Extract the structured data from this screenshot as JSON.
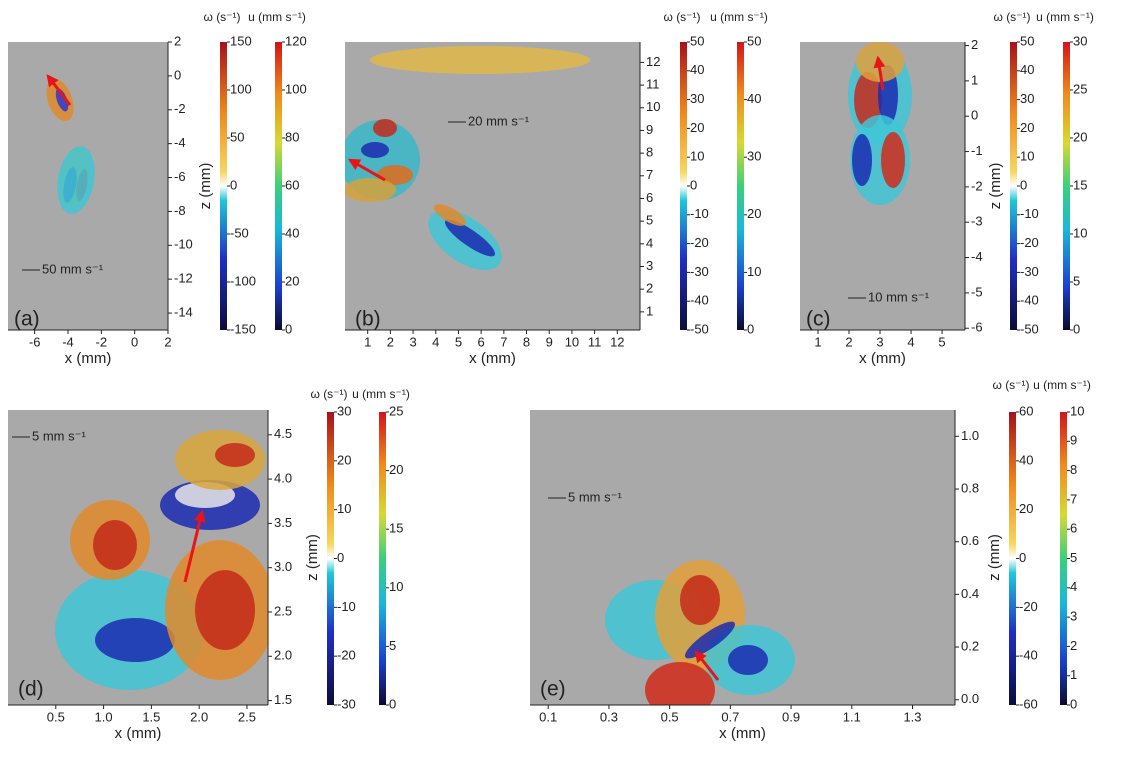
{
  "chart_data": [
    {
      "type": "flow-field",
      "panel_label": "(a)",
      "xlabel": "x (mm)",
      "ylabel": "z (mm)",
      "scale_label": "50 mm s⁻¹",
      "xlim": [
        -7.6,
        2
      ],
      "xticks": [
        -6,
        -4,
        -2,
        0,
        2
      ],
      "ylim": [
        -15,
        2
      ],
      "yticks": [
        2,
        0,
        -2,
        -4,
        -6,
        -8,
        -10,
        -12,
        -14
      ],
      "colorbars": [
        {
          "label": "ω (s⁻¹)",
          "lim": [
            -150,
            150
          ],
          "ticks": [
            150,
            100,
            50,
            0,
            -50,
            -100,
            -150
          ]
        },
        {
          "label": "u (mm s⁻¹)",
          "lim": [
            0,
            120
          ],
          "ticks": [
            120,
            100,
            80,
            60,
            40,
            20,
            0
          ]
        }
      ]
    },
    {
      "type": "flow-field",
      "panel_label": "(b)",
      "xlabel": "x (mm)",
      "scale_label": "20 mm s⁻¹",
      "xlim": [
        0,
        13
      ],
      "xticks": [
        1,
        2,
        3,
        4,
        5,
        6,
        7,
        8,
        9,
        10,
        11,
        12
      ],
      "ylim": [
        0.2,
        12.9
      ],
      "yticks": [
        12,
        11,
        10,
        9,
        8,
        7,
        6,
        5,
        4,
        3,
        2,
        1
      ],
      "colorbars": [
        {
          "label": "ω (s⁻¹)",
          "lim": [
            -50,
            50
          ],
          "ticks": [
            50,
            40,
            30,
            20,
            10,
            0,
            -10,
            -20,
            -30,
            -40,
            -50
          ]
        },
        {
          "label": "u (mm s⁻¹)",
          "lim": [
            0,
            50
          ],
          "ticks": [
            50,
            40,
            30,
            20,
            10,
            0
          ]
        }
      ]
    },
    {
      "type": "flow-field",
      "panel_label": "(c)",
      "xlabel": "x (mm)",
      "ylabel": "z (mm)",
      "scale_label": "10 mm s⁻¹",
      "xlim": [
        0.42,
        5.74
      ],
      "xticks": [
        1,
        2,
        3,
        4,
        5
      ],
      "ylim": [
        -6.05,
        2.1
      ],
      "yticks": [
        2,
        1,
        0,
        -1,
        -2,
        -3,
        -4,
        -5,
        -6
      ],
      "colorbars": [
        {
          "label": "ω (s⁻¹)",
          "lim": [
            -50,
            50
          ],
          "ticks": [
            50,
            40,
            30,
            20,
            10,
            0,
            -10,
            -20,
            -30,
            -40,
            -50
          ]
        },
        {
          "label": "u (mm s⁻¹)",
          "lim": [
            0,
            30
          ],
          "ticks": [
            30,
            25,
            20,
            15,
            10,
            5,
            0
          ]
        }
      ]
    },
    {
      "type": "flow-field",
      "panel_label": "(d)",
      "xlabel": "x (mm)",
      "ylabel": "z (mm)",
      "scale_label": "5 mm s⁻¹",
      "xlim": [
        0,
        2.72
      ],
      "xticks": [
        0.5,
        {
          "value": 1,
          "label": "1.0"
        },
        1.5,
        {
          "value": 2,
          "label": "2.0"
        },
        2.5
      ],
      "ylim": [
        1.45,
        4.78
      ],
      "yticks": [
        4.5,
        {
          "value": 4,
          "label": "4.0"
        },
        3.5,
        {
          "value": 3,
          "label": "3.0"
        },
        2.5,
        {
          "value": 2,
          "label": "2.0"
        },
        1.5
      ],
      "colorbars": [
        {
          "label": "ω (s⁻¹)",
          "lim": [
            -30,
            30
          ],
          "ticks": [
            30,
            20,
            10,
            0,
            -10,
            -20,
            -30
          ]
        },
        {
          "label": "u (mm s⁻¹)",
          "lim": [
            0,
            25
          ],
          "ticks": [
            25,
            20,
            15,
            10,
            5,
            0
          ]
        }
      ]
    },
    {
      "type": "flow-field",
      "panel_label": "(e)",
      "xlabel": "x (mm)",
      "ylabel": "z (mm)",
      "scale_label": "5 mm s⁻¹",
      "xlim": [
        0.04,
        1.44
      ],
      "xticks": [
        0.1,
        0.3,
        0.5,
        0.7,
        0.9,
        1.1,
        1.3
      ],
      "ylim": [
        -0.02,
        1.1
      ],
      "yticks": [
        {
          "value": 0,
          "label": "0.0"
        },
        0.2,
        0.4,
        0.6,
        0.8,
        {
          "value": 1,
          "label": "1.0"
        }
      ],
      "colorbars": [
        {
          "label": "ω (s⁻¹)",
          "lim": [
            -60,
            60
          ],
          "ticks": [
            60,
            40,
            20,
            0,
            -20,
            -40,
            -60
          ]
        },
        {
          "label": "u (mm s⁻¹)",
          "lim": [
            0,
            10
          ],
          "ticks": [
            10,
            9,
            8,
            7,
            6,
            5,
            4,
            3,
            2,
            1,
            0
          ]
        }
      ]
    }
  ]
}
